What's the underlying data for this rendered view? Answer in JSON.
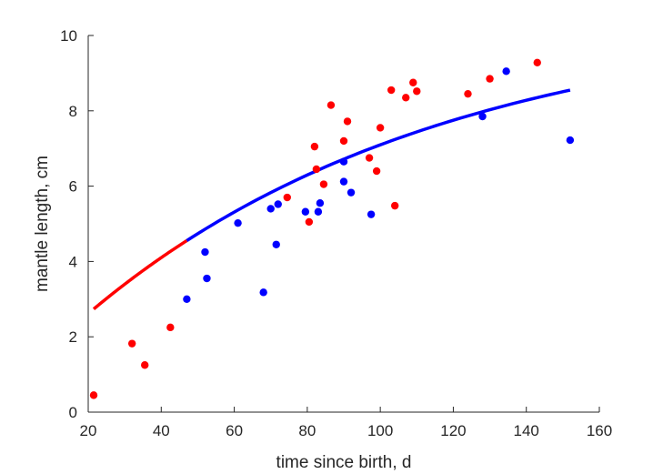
{
  "chart_data": {
    "type": "scatter",
    "xlabel": "time since birth, d",
    "ylabel": "mantle length, cm",
    "xlim": [
      20,
      160
    ],
    "ylim": [
      0,
      10
    ],
    "xticks": [
      20,
      40,
      60,
      80,
      100,
      120,
      140,
      160
    ],
    "yticks": [
      0,
      2,
      4,
      6,
      8,
      10
    ],
    "grid": false,
    "colors": {
      "red": "#ff0000",
      "blue": "#0000ff",
      "axis": "#262626"
    },
    "series": [
      {
        "color": "#ff0000",
        "points": [
          [
            21.5,
            0.45
          ],
          [
            32,
            1.82
          ],
          [
            35.5,
            1.25
          ],
          [
            42.5,
            2.25
          ],
          [
            74.5,
            5.7
          ],
          [
            80.5,
            5.05
          ],
          [
            82,
            7.05
          ],
          [
            82.5,
            6.45
          ],
          [
            84.5,
            6.05
          ],
          [
            86.5,
            8.15
          ],
          [
            90,
            7.2
          ],
          [
            91,
            7.72
          ],
          [
            97,
            6.75
          ],
          [
            99,
            6.4
          ],
          [
            100,
            7.55
          ],
          [
            103,
            8.55
          ],
          [
            104,
            5.48
          ],
          [
            107,
            8.35
          ],
          [
            109,
            8.75
          ],
          [
            110,
            8.52
          ],
          [
            124,
            8.45
          ],
          [
            130,
            8.85
          ],
          [
            143,
            9.28
          ]
        ]
      },
      {
        "color": "#0000ff",
        "points": [
          [
            47,
            3.0
          ],
          [
            52,
            4.25
          ],
          [
            52.5,
            3.55
          ],
          [
            61,
            5.02
          ],
          [
            68,
            3.18
          ],
          [
            70,
            5.4
          ],
          [
            71.5,
            4.45
          ],
          [
            72,
            5.52
          ],
          [
            79.5,
            5.32
          ],
          [
            83,
            5.32
          ],
          [
            83.5,
            5.55
          ],
          [
            90,
            6.65
          ],
          [
            90,
            6.12
          ],
          [
            92,
            5.83
          ],
          [
            97.5,
            5.25
          ],
          [
            128,
            7.85
          ],
          [
            134.5,
            9.05
          ],
          [
            152,
            7.22
          ]
        ]
      }
    ],
    "fit_curve": {
      "segments": [
        {
          "color": "#ff0000",
          "x_range": [
            21.5,
            47
          ],
          "samples": [
            [
              21.5,
              2.02
            ],
            [
              30,
              2.78
            ],
            [
              40,
              3.55
            ],
            [
              47,
              4.02
            ]
          ]
        },
        {
          "color": "#0000ff",
          "x_range": [
            47,
            152
          ],
          "samples": [
            [
              47,
              4.02
            ],
            [
              60,
              4.88
            ],
            [
              80,
              5.95
            ],
            [
              100,
              6.9
            ],
            [
              120,
              7.6
            ],
            [
              140,
              8.05
            ],
            [
              152,
              8.33
            ]
          ]
        }
      ]
    }
  }
}
